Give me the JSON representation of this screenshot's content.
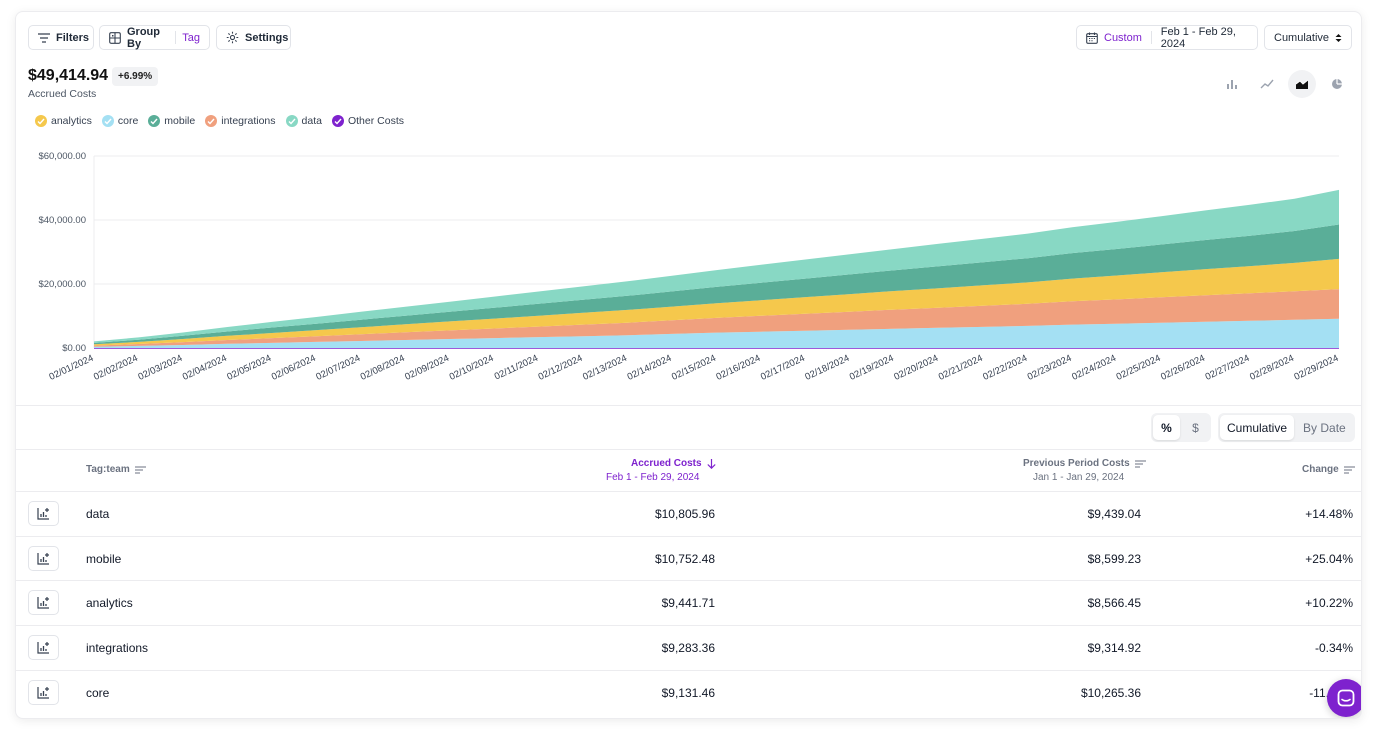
{
  "toolbar": {
    "filters_label": "Filters",
    "group_by_label": "Group By",
    "group_by_value": "Tag",
    "settings_label": "Settings",
    "date_mode": "Custom",
    "date_range": "Feb 1 - Feb 29, 2024",
    "view_select": "Cumulative"
  },
  "summary": {
    "total": "$49,414.94",
    "change": "+6.99%",
    "label": "Accrued Costs"
  },
  "chart_types": [
    "bar-chart-icon",
    "line-chart-icon",
    "area-chart-icon",
    "pie-chart-icon"
  ],
  "legend": [
    {
      "name": "analytics",
      "color": "#f5c84c"
    },
    {
      "name": "core",
      "color": "#a4e0f3"
    },
    {
      "name": "mobile",
      "color": "#5aae98"
    },
    {
      "name": "integrations",
      "color": "#f0a07e"
    },
    {
      "name": "data",
      "color": "#88d8c4"
    },
    {
      "name": "Other Costs",
      "color": "#7e22ce"
    }
  ],
  "chart_data": {
    "type": "area",
    "stacked": true,
    "ylim": [
      0,
      60000
    ],
    "yticks": [
      "$0.00",
      "$20,000.00",
      "$40,000.00",
      "$60,000.00"
    ],
    "ytick_values": [
      0,
      20000,
      40000,
      60000
    ],
    "x": [
      "02/01/2024",
      "02/02/2024",
      "02/03/2024",
      "02/04/2024",
      "02/05/2024",
      "02/06/2024",
      "02/07/2024",
      "02/08/2024",
      "02/09/2024",
      "02/10/2024",
      "02/11/2024",
      "02/12/2024",
      "02/13/2024",
      "02/14/2024",
      "02/15/2024",
      "02/16/2024",
      "02/17/2024",
      "02/18/2024",
      "02/19/2024",
      "02/20/2024",
      "02/21/2024",
      "02/22/2024",
      "02/23/2024",
      "02/24/2024",
      "02/25/2024",
      "02/26/2024",
      "02/27/2024",
      "02/28/2024",
      "02/29/2024"
    ],
    "series": [
      {
        "name": "Other Costs",
        "color": "#7e22ce",
        "values": [
          0,
          0,
          0,
          0,
          0,
          0,
          0,
          0,
          0,
          0,
          0,
          0,
          0,
          0,
          0,
          0,
          0,
          0,
          0,
          0,
          0,
          0,
          0,
          0,
          0,
          0,
          0,
          0,
          0
        ]
      },
      {
        "name": "core",
        "color": "#a4e0f3",
        "values": [
          400,
          650,
          950,
          1300,
          1600,
          1900,
          2200,
          2500,
          2800,
          3100,
          3400,
          3700,
          4000,
          4400,
          4800,
          5100,
          5400,
          5700,
          6000,
          6300,
          6600,
          6900,
          7300,
          7600,
          7900,
          8200,
          8500,
          8800,
          9131
        ]
      },
      {
        "name": "integrations",
        "color": "#f0a07e",
        "values": [
          350,
          600,
          900,
          1200,
          1500,
          1800,
          2100,
          2400,
          2700,
          3000,
          3300,
          3600,
          3900,
          4250,
          4600,
          4950,
          5300,
          5650,
          6000,
          6300,
          6600,
          6900,
          7300,
          7600,
          7950,
          8300,
          8600,
          8950,
          9283
        ]
      },
      {
        "name": "analytics",
        "color": "#f5c84c",
        "values": [
          400,
          650,
          950,
          1300,
          1600,
          1900,
          2200,
          2500,
          2800,
          3100,
          3400,
          3700,
          4000,
          4300,
          4600,
          4900,
          5200,
          5500,
          5800,
          6100,
          6400,
          6700,
          7100,
          7450,
          7800,
          8150,
          8500,
          8850,
          9442
        ]
      },
      {
        "name": "mobile",
        "color": "#5aae98",
        "values": [
          450,
          700,
          1000,
          1350,
          1700,
          2000,
          2350,
          2700,
          3000,
          3350,
          3700,
          4050,
          4400,
          4750,
          5100,
          5450,
          5800,
          6150,
          6500,
          6850,
          7200,
          7550,
          7950,
          8300,
          8700,
          9100,
          9500,
          9950,
          10752
        ]
      },
      {
        "name": "data",
        "color": "#88d8c4",
        "values": [
          450,
          700,
          1050,
          1400,
          1750,
          2100,
          2450,
          2800,
          3150,
          3500,
          3850,
          4200,
          4550,
          4900,
          5250,
          5600,
          5950,
          6300,
          6650,
          7000,
          7350,
          7700,
          8100,
          8450,
          8850,
          9250,
          9650,
          10100,
          10806
        ]
      }
    ]
  },
  "table_controls": {
    "percent_label": "%",
    "dollar_label": "$",
    "cumulative_label": "Cumulative",
    "by_date_label": "By Date"
  },
  "table": {
    "col_name": "Tag:team",
    "col_accrued": "Accrued Costs",
    "col_accrued_sub": "Feb 1 - Feb 29, 2024",
    "col_previous": "Previous Period Costs",
    "col_previous_sub": "Jan 1 - Jan 29, 2024",
    "col_change": "Change",
    "rows": [
      {
        "name": "data",
        "accrued": "$10,805.96",
        "previous": "$9,439.04",
        "change": "+14.48%"
      },
      {
        "name": "mobile",
        "accrued": "$10,752.48",
        "previous": "$8,599.23",
        "change": "+25.04%"
      },
      {
        "name": "analytics",
        "accrued": "$9,441.71",
        "previous": "$8,566.45",
        "change": "+10.22%"
      },
      {
        "name": "integrations",
        "accrued": "$9,283.36",
        "previous": "$9,314.92",
        "change": "-0.34%"
      },
      {
        "name": "core",
        "accrued": "$9,131.46",
        "previous": "$10,265.36",
        "change": "-11.05%"
      }
    ]
  }
}
